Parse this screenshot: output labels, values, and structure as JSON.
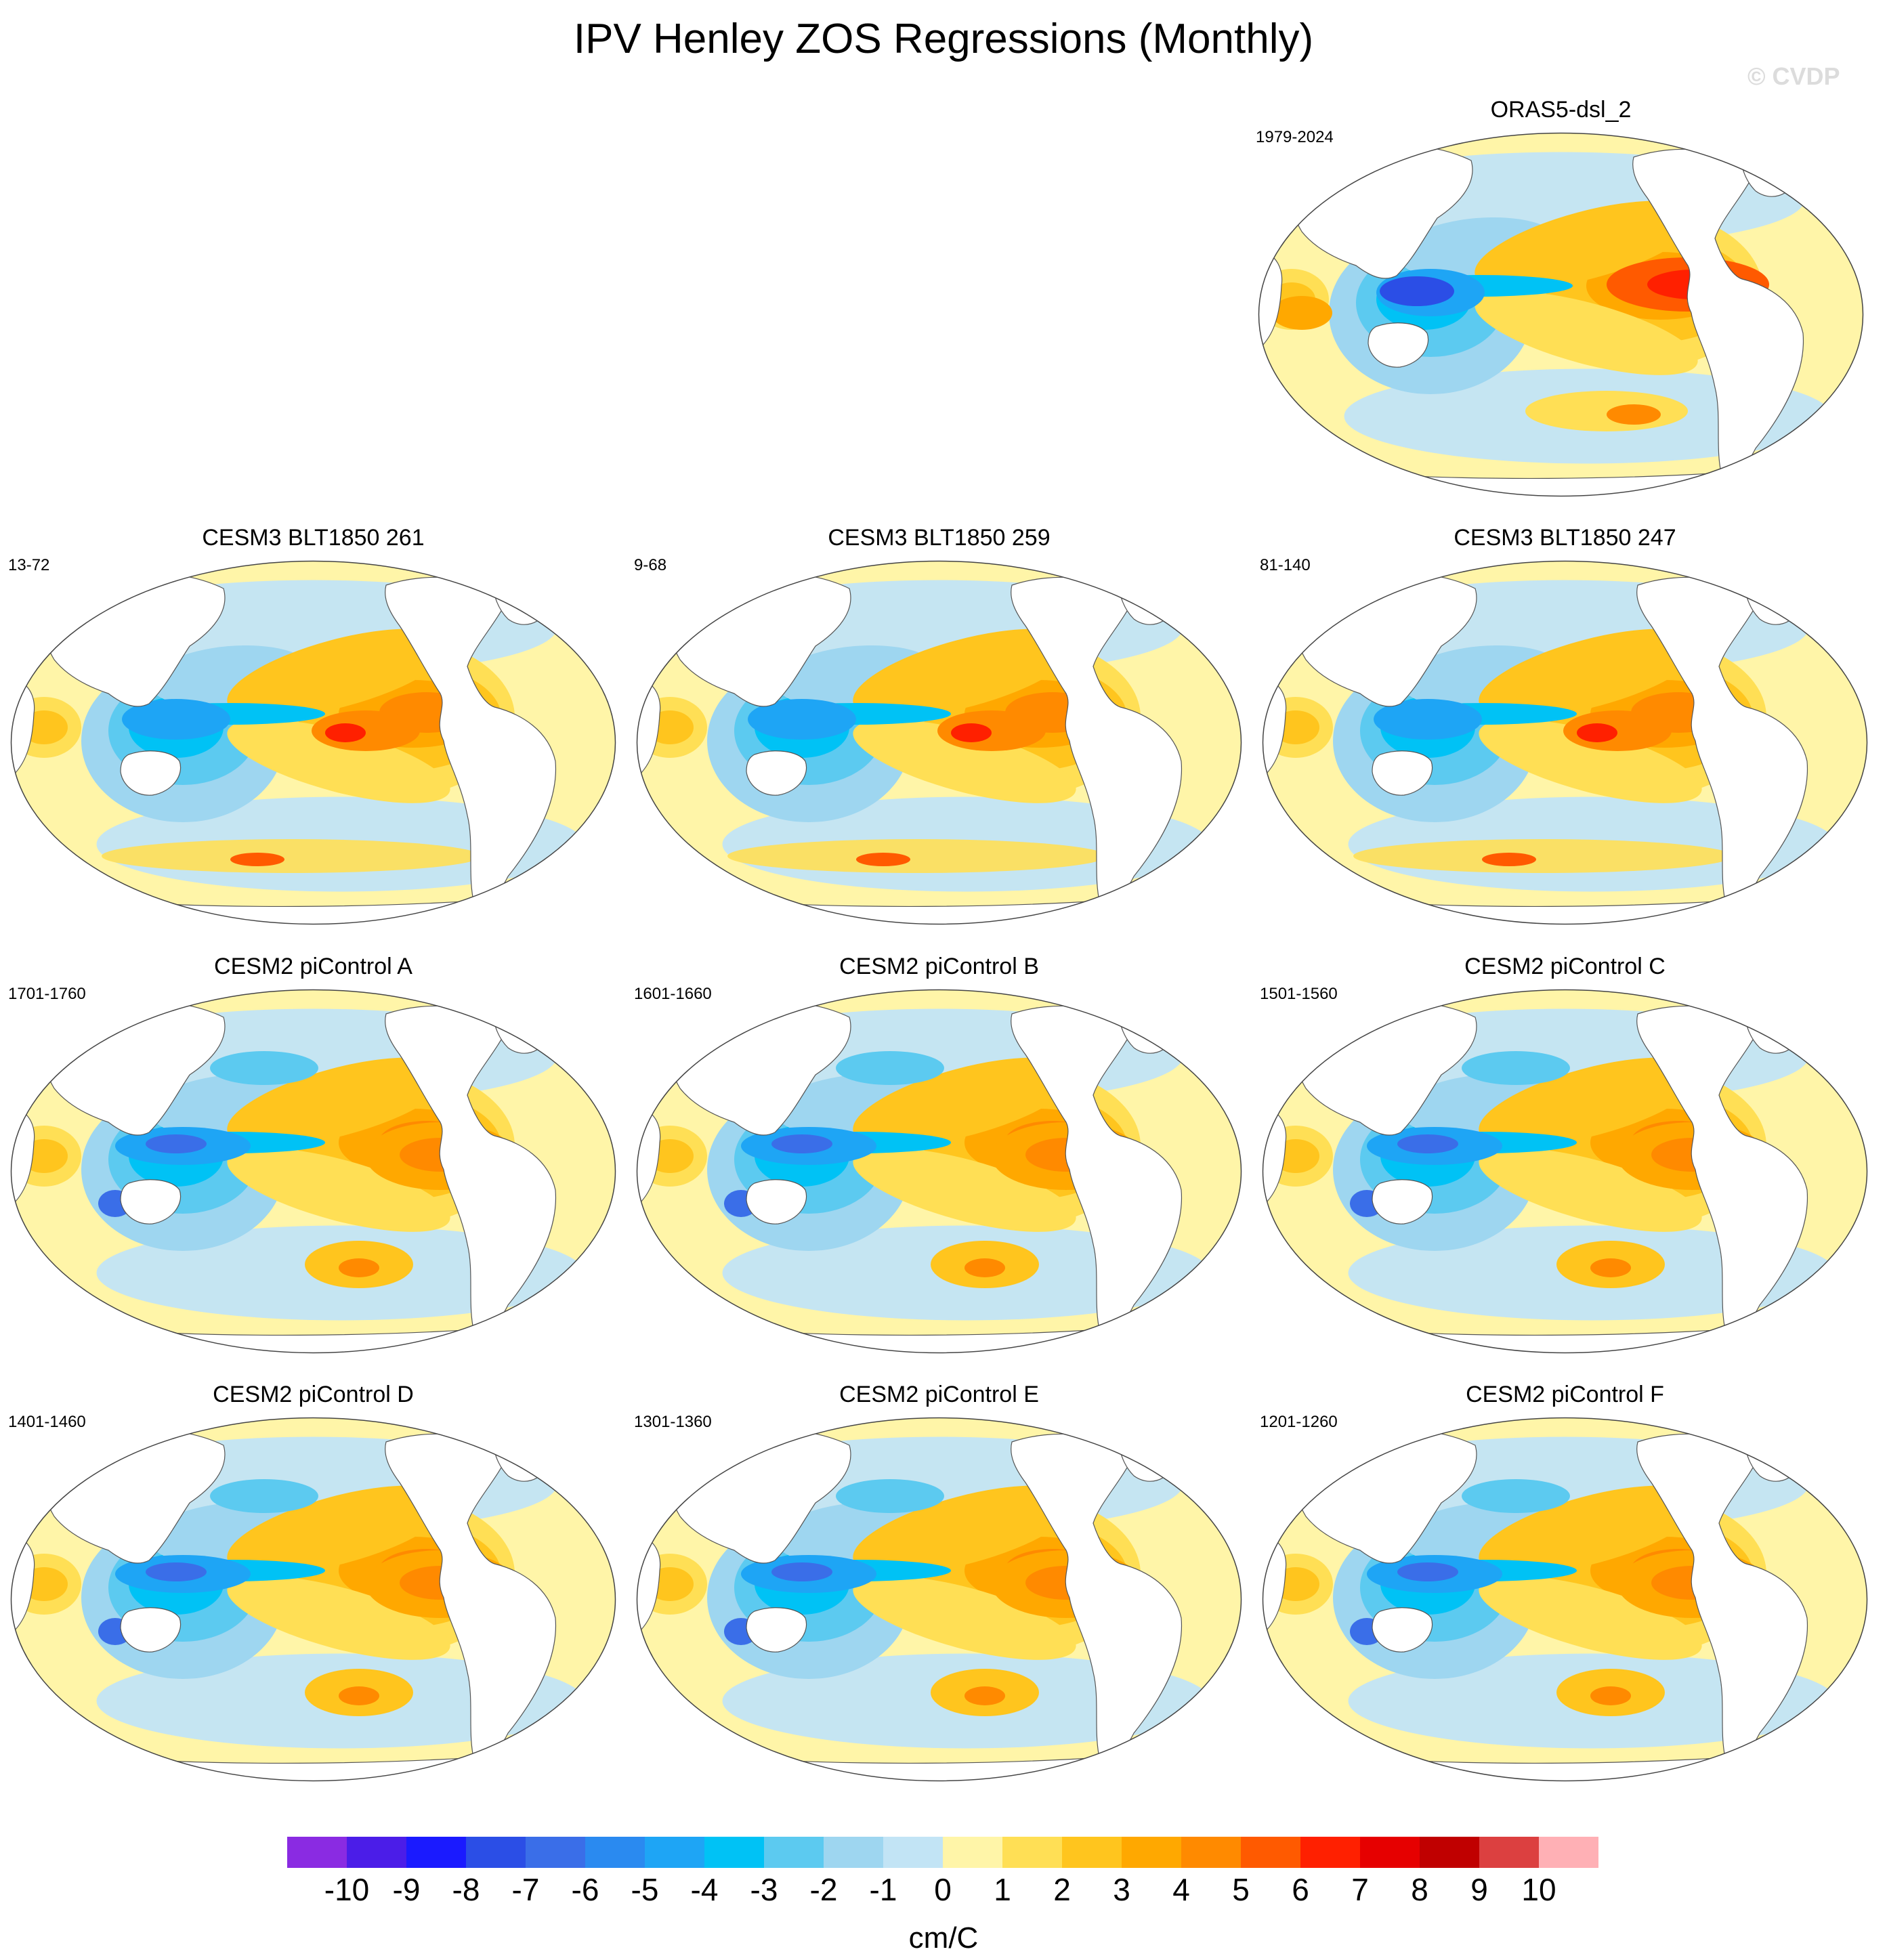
{
  "title": "IPV Henley ZOS Regressions (Monthly)",
  "watermark": "© CVDP",
  "chart_data": {
    "type": "heatmap",
    "projection": "Robinson-style global ocean maps centered on the Pacific",
    "panels": [
      {
        "id": "orras",
        "title": "ORAS5-dsl_2",
        "years": "1979-2024",
        "pattern": "obs"
      },
      {
        "id": "blt261",
        "title": "CESM3 BLT1850 261",
        "years": "13-72",
        "pattern": "cesm3"
      },
      {
        "id": "blt259",
        "title": "CESM3 BLT1850 259",
        "years": "9-68",
        "pattern": "cesm3"
      },
      {
        "id": "blt247",
        "title": "CESM3 BLT1850 247",
        "years": "81-140",
        "pattern": "cesm3"
      },
      {
        "id": "picA",
        "title": "CESM2 piControl A",
        "years": "1701-1760",
        "pattern": "cesm2"
      },
      {
        "id": "picB",
        "title": "CESM2 piControl B",
        "years": "1601-1660",
        "pattern": "cesm2"
      },
      {
        "id": "picC",
        "title": "CESM2 piControl C",
        "years": "1501-1560",
        "pattern": "cesm2"
      },
      {
        "id": "picD",
        "title": "CESM2 piControl D",
        "years": "1401-1460",
        "pattern": "cesm2"
      },
      {
        "id": "picE",
        "title": "CESM2 piControl E",
        "years": "1301-1360",
        "pattern": "cesm2"
      },
      {
        "id": "picF",
        "title": "CESM2 piControl F",
        "years": "1201-1260",
        "pattern": "cesm2"
      }
    ],
    "colorbar": {
      "label": "cm/C",
      "tick_labels": [
        "-10",
        "-9",
        "-8",
        "-7",
        "-6",
        "-5",
        "-4",
        "-3",
        "-2",
        "-1",
        "0",
        "1",
        "2",
        "3",
        "4",
        "5",
        "6",
        "7",
        "8",
        "9",
        "10"
      ],
      "colors": [
        "#8a2be2",
        "#4b1de8",
        "#1a1aff",
        "#2b4ee6",
        "#3a6ee8",
        "#2a8af0",
        "#1ea5f5",
        "#00c2f5",
        "#5ccaf0",
        "#9ed6f0",
        "#c2e4f5",
        "#fff5a8",
        "#ffdf55",
        "#ffc51e",
        "#ffa800",
        "#ff8a00",
        "#ff5a00",
        "#ff2000",
        "#e60000",
        "#c00000",
        "#dc4040",
        "#ffb0b5"
      ]
    }
  }
}
